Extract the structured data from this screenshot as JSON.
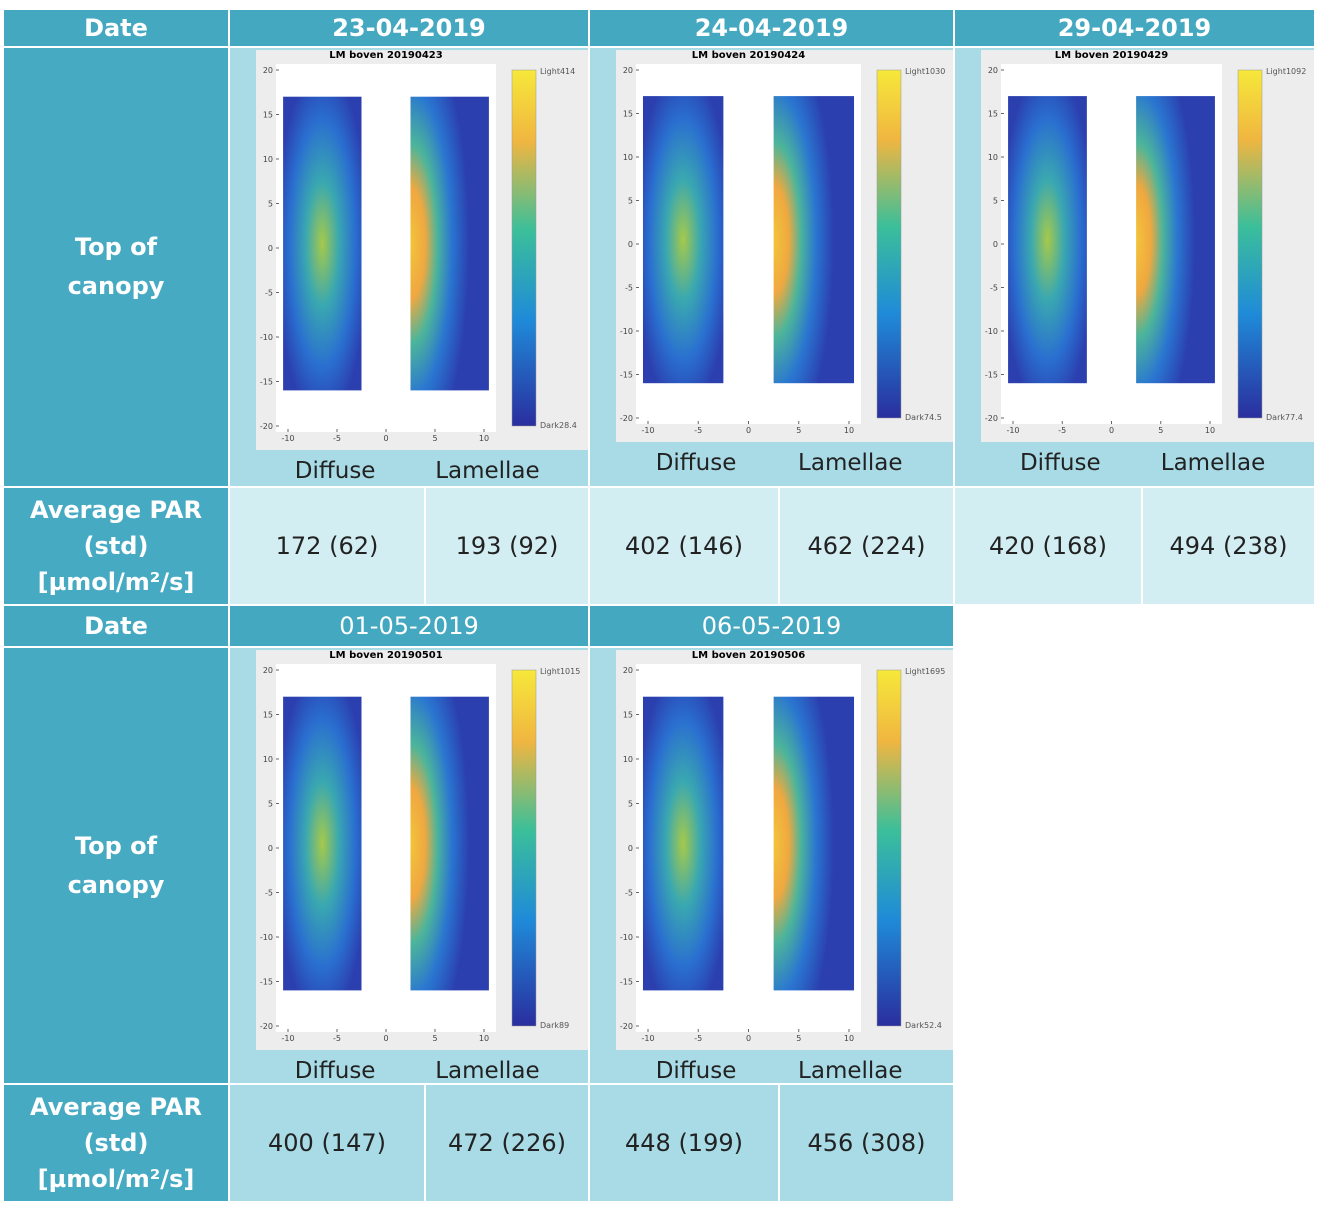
{
  "tables": [
    {
      "header_label": "Date",
      "dates": [
        "23-04-2019",
        "24-04-2019",
        "29-04-2019"
      ],
      "row_label": [
        "Top of",
        "canopy"
      ],
      "images": [
        {
          "title": "LM boven 20190423",
          "colorbar_top": "Light414",
          "colorbar_bottom": "Dark28.4",
          "labels": [
            "Diffuse",
            "Lamellae"
          ]
        },
        {
          "title": "LM boven 20190424",
          "colorbar_top": "Light1030",
          "colorbar_bottom": "Dark74.5",
          "labels": [
            "Diffuse",
            "Lamellae"
          ]
        },
        {
          "title": "LM boven 20190429",
          "colorbar_top": "Light1092",
          "colorbar_bottom": "Dark77.4",
          "labels": [
            "Diffuse",
            "Lamellae"
          ]
        }
      ],
      "par_label": [
        "Average PAR",
        "(std)",
        "[µmol/m²/s]"
      ],
      "par_values": [
        "172 (62)",
        "193 (92)",
        "402 (146)",
        "462 (224)",
        "420 (168)",
        "494 (238)"
      ]
    },
    {
      "header_label": "Date",
      "dates": [
        "01-05-2019",
        "06-05-2019"
      ],
      "row_label": [
        "Top of",
        "canopy"
      ],
      "images": [
        {
          "title": "LM boven 20190501",
          "colorbar_top": "Light1015",
          "colorbar_bottom": "Dark89",
          "labels": [
            "Diffuse",
            "Lamellae"
          ]
        },
        {
          "title": "LM boven 20190506",
          "colorbar_top": "Light1695",
          "colorbar_bottom": "Dark52.4",
          "labels": [
            "Diffuse",
            "Lamellae"
          ]
        }
      ],
      "par_label": [
        "Average PAR",
        "(std)",
        "[µmol/m²/s]"
      ],
      "par_values": [
        "400 (147)",
        "472 (226)",
        "448 (199)",
        "456 (308)"
      ]
    }
  ],
  "plot_axes": {
    "xticks": [
      -10,
      -5,
      0,
      5,
      10
    ],
    "yticks": [
      20,
      15,
      10,
      5,
      0,
      -5,
      -10,
      -15,
      -20
    ]
  }
}
